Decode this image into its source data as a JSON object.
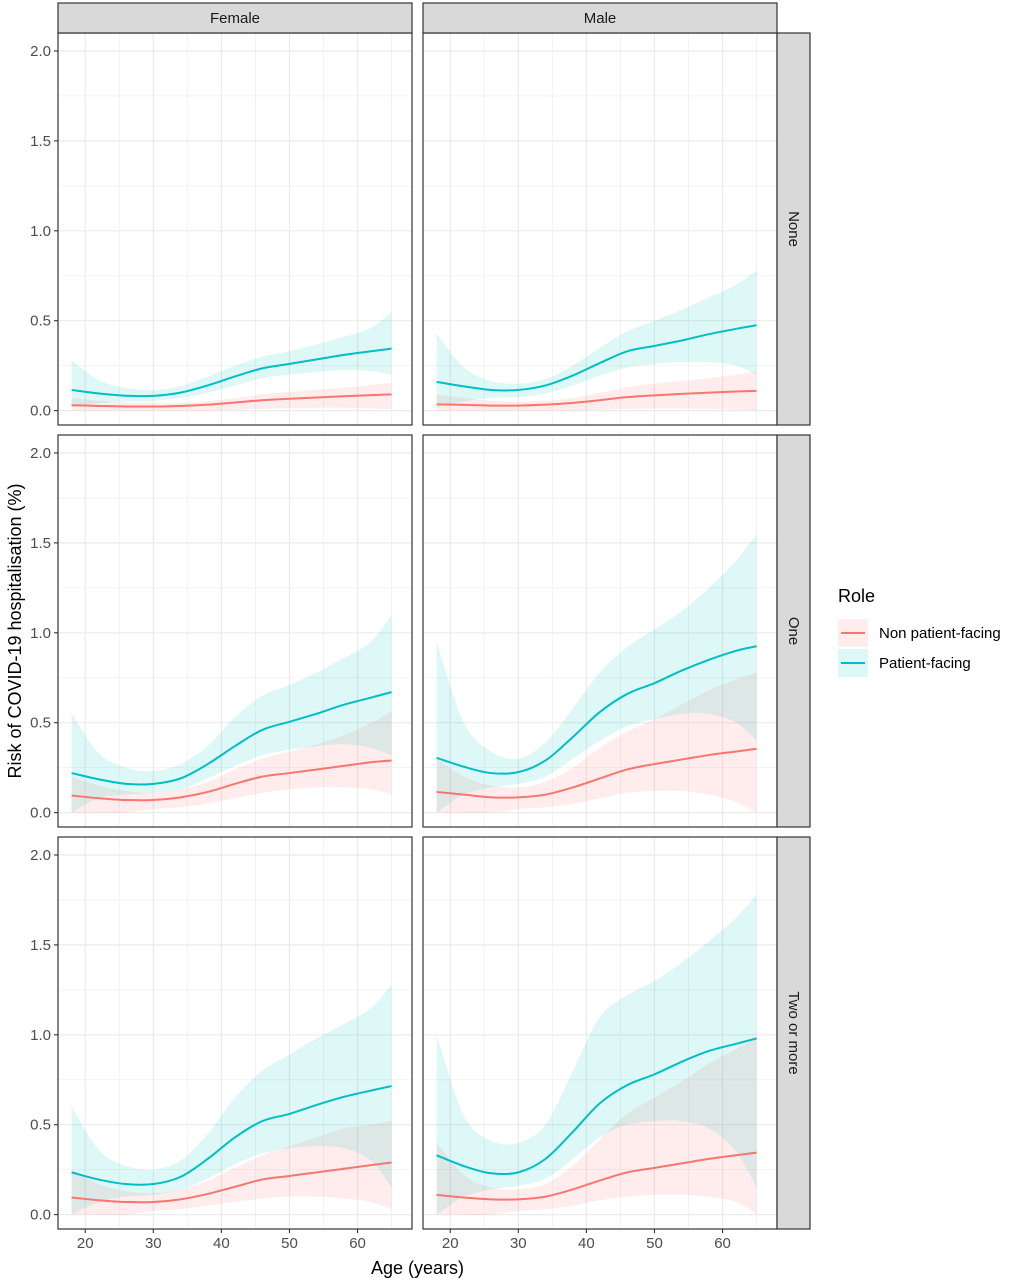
{
  "chart_data": {
    "type": "line",
    "facet_columns": [
      "Female",
      "Male"
    ],
    "facet_rows": [
      "None",
      "One",
      "Two or more"
    ],
    "xlabel": "Age (years)",
    "ylabel": "Risk of COVID-19 hospitalisation (%)",
    "xlim": [
      16,
      68
    ],
    "ylim": [
      -0.08,
      2.1
    ],
    "x_ticks": [
      20,
      30,
      40,
      50,
      60
    ],
    "y_ticks": [
      0.0,
      0.5,
      1.0,
      1.5,
      2.0
    ],
    "y_tick_labels": [
      "0.0",
      "0.5",
      "1.0",
      "1.5",
      "2.0"
    ],
    "legend_title": "Role",
    "legend_position": "right",
    "grid": true,
    "colors": {
      "Non patient-facing": "#F8766D",
      "Patient-facing": "#00BFC4"
    },
    "series_names": [
      "Non patient-facing",
      "Patient-facing"
    ],
    "x": [
      18,
      22,
      26,
      30,
      34,
      38,
      42,
      46,
      50,
      54,
      58,
      62,
      65
    ],
    "panels": [
      {
        "column": "Female",
        "row": "None",
        "series": [
          {
            "name": "Non patient-facing",
            "values": [
              0.03,
              0.026,
              0.023,
              0.023,
              0.026,
              0.033,
              0.045,
              0.058,
              0.066,
              0.073,
              0.08,
              0.086,
              0.09
            ],
            "lower": [
              0.0,
              0.0,
              0.0,
              0.0,
              0.0,
              0.0,
              0.005,
              0.01,
              0.014,
              0.016,
              0.016,
              0.012,
              0.006
            ],
            "upper": [
              0.07,
              0.055,
              0.045,
              0.04,
              0.042,
              0.052,
              0.07,
              0.09,
              0.104,
              0.116,
              0.128,
              0.142,
              0.155
            ]
          },
          {
            "name": "Patient-facing",
            "values": [
              0.115,
              0.095,
              0.083,
              0.082,
              0.1,
              0.14,
              0.19,
              0.235,
              0.26,
              0.285,
              0.31,
              0.33,
              0.345
            ],
            "lower": [
              0.02,
              0.04,
              0.05,
              0.055,
              0.07,
              0.1,
              0.14,
              0.18,
              0.2,
              0.215,
              0.225,
              0.22,
              0.2
            ],
            "upper": [
              0.28,
              0.17,
              0.125,
              0.115,
              0.135,
              0.19,
              0.25,
              0.3,
              0.33,
              0.37,
              0.41,
              0.46,
              0.55
            ]
          }
        ]
      },
      {
        "column": "Male",
        "row": "None",
        "series": [
          {
            "name": "Non patient-facing",
            "values": [
              0.035,
              0.032,
              0.028,
              0.028,
              0.033,
              0.043,
              0.058,
              0.075,
              0.085,
              0.093,
              0.1,
              0.106,
              0.11
            ],
            "lower": [
              0.0,
              0.0,
              0.0,
              0.0,
              0.0,
              0.0,
              0.005,
              0.01,
              0.012,
              0.012,
              0.01,
              0.005,
              0.0
            ],
            "upper": [
              0.09,
              0.07,
              0.055,
              0.05,
              0.055,
              0.07,
              0.1,
              0.13,
              0.15,
              0.165,
              0.18,
              0.2,
              0.22
            ]
          },
          {
            "name": "Patient-facing",
            "values": [
              0.16,
              0.135,
              0.115,
              0.115,
              0.14,
              0.195,
              0.265,
              0.33,
              0.36,
              0.39,
              0.425,
              0.455,
              0.475
            ],
            "lower": [
              0.02,
              0.05,
              0.07,
              0.075,
              0.095,
              0.14,
              0.195,
              0.24,
              0.26,
              0.27,
              0.27,
              0.25,
              0.2
            ],
            "upper": [
              0.43,
              0.24,
              0.165,
              0.15,
              0.175,
              0.25,
              0.35,
              0.44,
              0.5,
              0.56,
              0.63,
              0.7,
              0.78
            ]
          }
        ]
      },
      {
        "column": "Female",
        "row": "One",
        "series": [
          {
            "name": "Non patient-facing",
            "values": [
              0.095,
              0.08,
              0.07,
              0.07,
              0.085,
              0.115,
              0.16,
              0.2,
              0.22,
              0.24,
              0.26,
              0.28,
              0.29
            ],
            "lower": [
              0.0,
              0.0,
              0.0,
              0.02,
              0.03,
              0.05,
              0.08,
              0.11,
              0.13,
              0.14,
              0.14,
              0.13,
              0.1
            ],
            "upper": [
              0.2,
              0.15,
              0.12,
              0.11,
              0.13,
              0.17,
              0.24,
              0.3,
              0.34,
              0.38,
              0.43,
              0.5,
              0.56
            ]
          },
          {
            "name": "Patient-facing",
            "values": [
              0.22,
              0.185,
              0.16,
              0.16,
              0.19,
              0.27,
              0.37,
              0.46,
              0.505,
              0.55,
              0.6,
              0.64,
              0.67
            ],
            "lower": [
              0.0,
              0.08,
              0.1,
              0.11,
              0.13,
              0.19,
              0.26,
              0.32,
              0.35,
              0.37,
              0.38,
              0.36,
              0.32
            ],
            "upper": [
              0.55,
              0.33,
              0.25,
              0.23,
              0.27,
              0.37,
              0.53,
              0.65,
              0.71,
              0.78,
              0.86,
              0.95,
              1.1
            ]
          }
        ]
      },
      {
        "column": "Male",
        "row": "One",
        "series": [
          {
            "name": "Non patient-facing",
            "values": [
              0.115,
              0.1,
              0.085,
              0.085,
              0.1,
              0.14,
              0.19,
              0.24,
              0.27,
              0.295,
              0.32,
              0.34,
              0.355
            ],
            "lower": [
              0.0,
              0.0,
              0.0,
              0.02,
              0.03,
              0.05,
              0.08,
              0.11,
              0.12,
              0.12,
              0.1,
              0.06,
              0.0
            ],
            "upper": [
              0.3,
              0.2,
              0.15,
              0.14,
              0.17,
              0.25,
              0.36,
              0.45,
              0.52,
              0.6,
              0.68,
              0.74,
              0.78
            ]
          },
          {
            "name": "Patient-facing",
            "values": [
              0.305,
              0.255,
              0.22,
              0.225,
              0.29,
              0.42,
              0.56,
              0.66,
              0.72,
              0.79,
              0.85,
              0.9,
              0.925
            ],
            "lower": [
              0.0,
              0.1,
              0.14,
              0.16,
              0.2,
              0.3,
              0.4,
              0.48,
              0.52,
              0.55,
              0.55,
              0.5,
              0.4
            ],
            "upper": [
              0.95,
              0.5,
              0.34,
              0.3,
              0.39,
              0.58,
              0.78,
              0.92,
              1.02,
              1.12,
              1.25,
              1.4,
              1.55
            ]
          }
        ]
      },
      {
        "column": "Female",
        "row": "Two or more",
        "series": [
          {
            "name": "Non patient-facing",
            "values": [
              0.095,
              0.08,
              0.07,
              0.07,
              0.085,
              0.115,
              0.155,
              0.195,
              0.215,
              0.235,
              0.255,
              0.275,
              0.29
            ],
            "lower": [
              0.0,
              0.0,
              0.0,
              0.02,
              0.03,
              0.05,
              0.07,
              0.09,
              0.1,
              0.1,
              0.09,
              0.07,
              0.03
            ],
            "upper": [
              0.25,
              0.17,
              0.13,
              0.12,
              0.14,
              0.19,
              0.26,
              0.33,
              0.38,
              0.43,
              0.48,
              0.5,
              0.52
            ]
          },
          {
            "name": "Patient-facing",
            "values": [
              0.235,
              0.195,
              0.17,
              0.17,
              0.21,
              0.31,
              0.43,
              0.52,
              0.56,
              0.61,
              0.655,
              0.69,
              0.715
            ],
            "lower": [
              0.0,
              0.07,
              0.1,
              0.11,
              0.14,
              0.2,
              0.28,
              0.34,
              0.37,
              0.38,
              0.37,
              0.3,
              0.15
            ],
            "upper": [
              0.6,
              0.36,
              0.27,
              0.25,
              0.3,
              0.45,
              0.65,
              0.8,
              0.89,
              0.98,
              1.06,
              1.15,
              1.28
            ]
          }
        ]
      },
      {
        "column": "Male",
        "row": "Two or more",
        "series": [
          {
            "name": "Non patient-facing",
            "values": [
              0.11,
              0.095,
              0.085,
              0.085,
              0.1,
              0.14,
              0.19,
              0.235,
              0.26,
              0.285,
              0.31,
              0.33,
              0.345
            ],
            "lower": [
              0.0,
              0.0,
              0.0,
              0.02,
              0.03,
              0.05,
              0.08,
              0.1,
              0.11,
              0.11,
              0.1,
              0.07,
              0.0
            ],
            "upper": [
              0.4,
              0.22,
              0.15,
              0.14,
              0.17,
              0.27,
              0.42,
              0.56,
              0.65,
              0.74,
              0.84,
              0.92,
              0.98
            ]
          },
          {
            "name": "Patient-facing",
            "values": [
              0.33,
              0.27,
              0.23,
              0.235,
              0.31,
              0.46,
              0.62,
              0.72,
              0.78,
              0.85,
              0.91,
              0.95,
              0.98
            ],
            "lower": [
              0.0,
              0.1,
              0.14,
              0.16,
              0.2,
              0.31,
              0.43,
              0.5,
              0.52,
              0.52,
              0.48,
              0.35,
              0.15
            ],
            "upper": [
              1.0,
              0.55,
              0.41,
              0.4,
              0.5,
              0.8,
              1.1,
              1.22,
              1.3,
              1.4,
              1.52,
              1.65,
              1.78
            ]
          }
        ]
      }
    ]
  }
}
